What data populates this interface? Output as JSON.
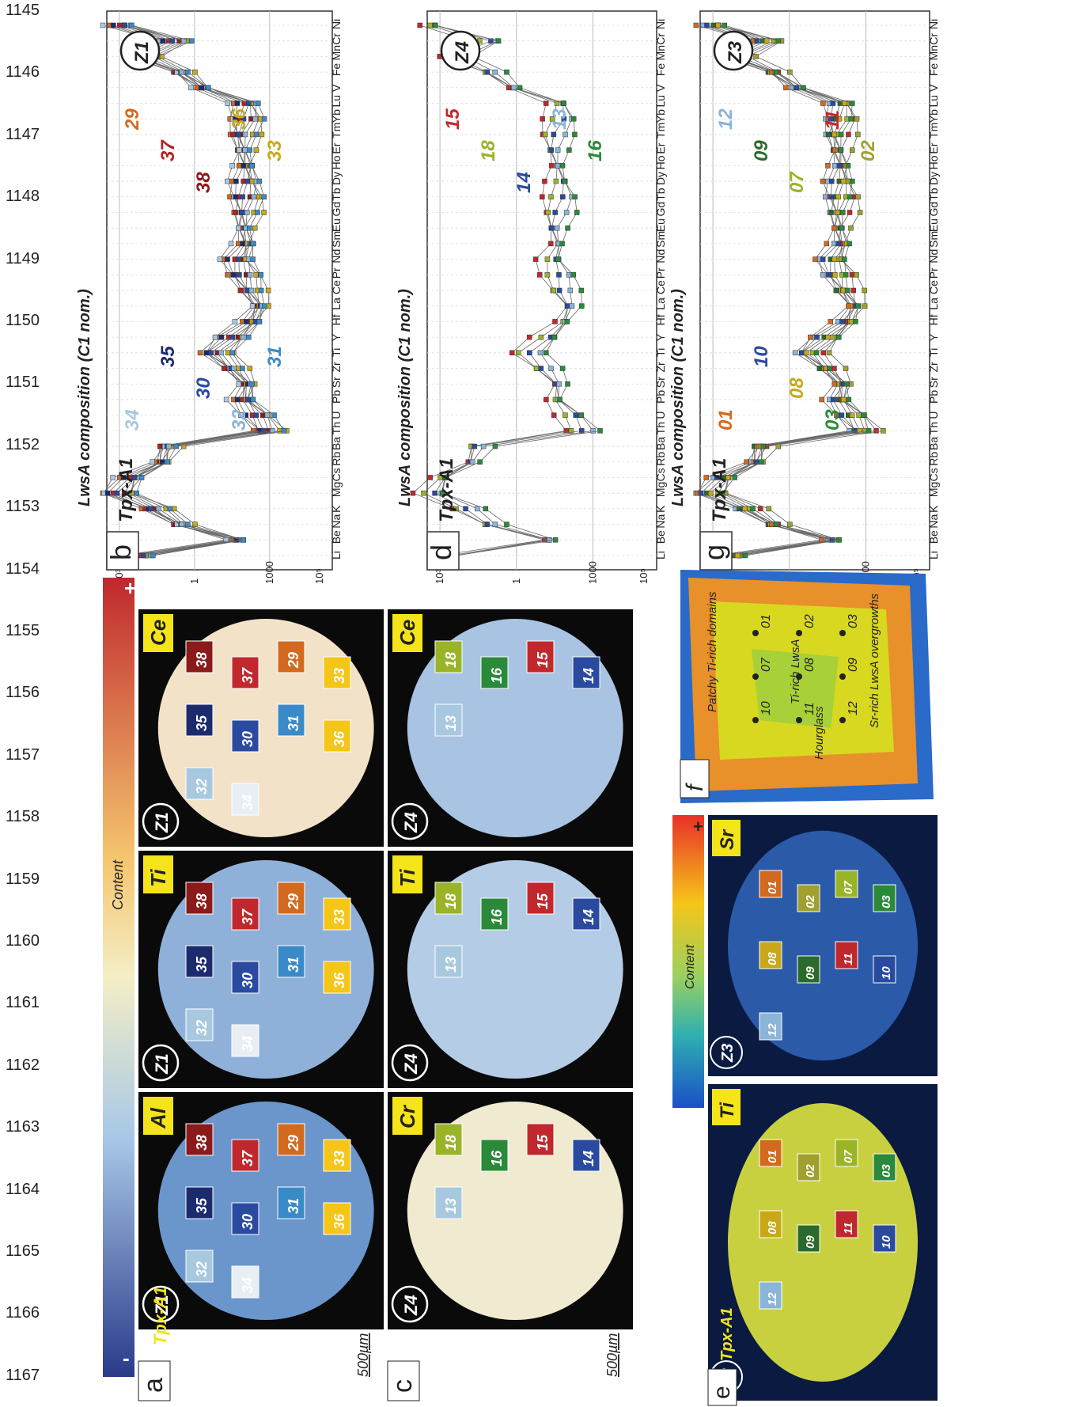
{
  "line_numbers": [
    "1145",
    "1146",
    "1147",
    "1148",
    "1149",
    "1150",
    "1151",
    "1152",
    "1153",
    "1154",
    "1155",
    "1156",
    "1157",
    "1158",
    "1159",
    "1160",
    "1161",
    "1162",
    "1163",
    "1164",
    "1165",
    "1166",
    "1167"
  ],
  "plots": [
    {
      "letter": "b",
      "sample": "Tpx-A1",
      "zone": "Z1",
      "ylabel": "LwsA composition (C1 nom.)",
      "labels": [
        {
          "text": "29",
          "color": "#d2691e"
        },
        {
          "text": "37",
          "color": "#b22222"
        },
        {
          "text": "38",
          "color": "#8b1a1a"
        },
        {
          "text": "36",
          "color": "#c8a818"
        },
        {
          "text": "33",
          "color": "#c8a818"
        },
        {
          "text": "34",
          "color": "#a8c8e0"
        },
        {
          "text": "35",
          "color": "#1c2a6e"
        },
        {
          "text": "30",
          "color": "#2a4aa0"
        },
        {
          "text": "32",
          "color": "#8ab4d8"
        },
        {
          "text": "31",
          "color": "#3a8ac8"
        }
      ]
    },
    {
      "letter": "d",
      "sample": "Tpx-A1",
      "zone": "Z4",
      "ylabel": "LwsA composition (C1 nom.)",
      "labels": [
        {
          "text": "15",
          "color": "#c0282d"
        },
        {
          "text": "18",
          "color": "#9ab428"
        },
        {
          "text": "14",
          "color": "#2a4aa0"
        },
        {
          "text": "13",
          "color": "#8ab4d8"
        },
        {
          "text": "16",
          "color": "#2a8a3a"
        }
      ]
    },
    {
      "letter": "g",
      "sample": "Tpx-A1",
      "zone": "Z3",
      "ylabel": "LwsA composition (C1 nom.)",
      "labels": [
        {
          "text": "12",
          "color": "#8ab4d8"
        },
        {
          "text": "09",
          "color": "#2a6a2a"
        },
        {
          "text": "07",
          "color": "#9ab428"
        },
        {
          "text": "11",
          "color": "#c0282d"
        },
        {
          "text": "02",
          "color": "#a0a030"
        },
        {
          "text": "01",
          "color": "#d2691e"
        },
        {
          "text": "10",
          "color": "#2a4aa0"
        },
        {
          "text": "08",
          "color": "#c8a818"
        },
        {
          "text": "03",
          "color": "#2a8a3a"
        }
      ]
    }
  ],
  "elements": [
    "Li",
    "Be",
    "Na",
    "K",
    "Mg",
    "Cs",
    "Rb",
    "Ba",
    "Th",
    "U",
    "Pb",
    "Sr",
    "Zr",
    "Ti",
    "Y",
    "Hf",
    "La",
    "Ce",
    "Pr",
    "Nd",
    "Sm",
    "Eu",
    "Gd",
    "Tb",
    "Dy",
    "Ho",
    "Er",
    "Tm",
    "Yb",
    "Lu",
    "V",
    "Fe",
    "Mn",
    "Cr",
    "Ni"
  ],
  "yticks": [
    "10³",
    "1",
    "1000",
    "10⁵"
  ],
  "maps": [
    {
      "element": "Ce",
      "zone": "Z1"
    },
    {
      "element": "Ti",
      "zone": "Z1"
    },
    {
      "element": "Al",
      "zone": "Z1"
    },
    {
      "element": "Ce",
      "zone": "Z4"
    },
    {
      "element": "Ti",
      "zone": "Z4"
    },
    {
      "element": "Cr",
      "zone": "Z4"
    },
    {
      "element": "Sr",
      "zone": "Z3"
    },
    {
      "element": "Ti",
      "zone": "Z3"
    }
  ],
  "panel_letters": {
    "a": "a",
    "c": "c",
    "e": "e",
    "f": "f"
  },
  "sample_tag": "Tpx-A1",
  "scalebar": "500µm",
  "colorbar": {
    "label": "Content",
    "plus": "+",
    "minus": "-"
  },
  "schematic": {
    "labels": [
      "Patchy Ti-rich domains",
      "Ti-rich LwsA",
      "Hourglass",
      "Sr-rich LwsA overgrowths"
    ],
    "points": [
      "01",
      "02",
      "03",
      "07",
      "08",
      "09",
      "10",
      "11",
      "12"
    ]
  },
  "z1_points": [
    "38",
    "37",
    "29",
    "33",
    "35",
    "30",
    "31",
    "36",
    "32",
    "34"
  ],
  "z4_points": [
    "18",
    "16",
    "15",
    "14",
    "13"
  ],
  "z3_points": [
    "01",
    "02",
    "07",
    "03",
    "08",
    "09",
    "11",
    "10",
    "12"
  ]
}
